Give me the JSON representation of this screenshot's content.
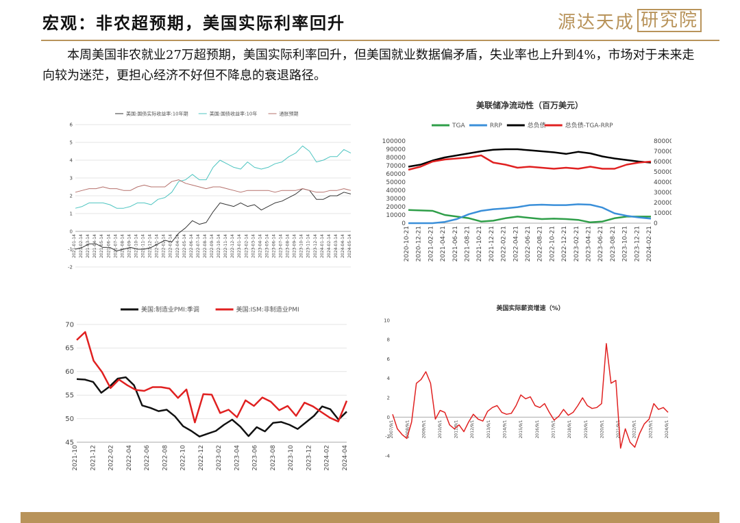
{
  "header": {
    "title": "宏观：非农超预期，美国实际利率回升",
    "logo_text": "源达天成",
    "logo_box": "研究院"
  },
  "body": {
    "paragraph": "本周美国非农就业27万超预期，美国实际利率回升，但美国就业数据偏矛盾，失业率也上升到4%，市场对于未来走向较为迷茫，更担心经济不好但不降息的衰退路径。"
  },
  "colors": {
    "gold": "#b8935a"
  },
  "chart_data": [
    {
      "type": "line",
      "title": "",
      "legend": [
        "美国:国债实际收益率:10年期",
        "美国:国债收益率:10年",
        "通胀预期"
      ],
      "x_ticks": [
        "2021-01-14",
        "2021-02-14",
        "2021-03-14",
        "2021-04-14",
        "2021-05-14",
        "2021-06-14",
        "2021-07-14",
        "2021-08-14",
        "2021-09-14",
        "2021-10-14",
        "2021-11-14",
        "2021-12-14",
        "2022-01-14",
        "2022-02-14",
        "2022-03-14",
        "2022-04-14",
        "2022-05-14",
        "2022-06-14",
        "2022-07-14",
        "2022-08-14",
        "2022-09-14",
        "2022-10-14",
        "2022-11-14",
        "2022-12-14",
        "2023-01-14",
        "2023-02-14",
        "2023-03-14",
        "2023-04-14",
        "2023-05-14",
        "2023-06-14",
        "2023-07-14",
        "2023-08-14",
        "2023-09-14",
        "2023-10-14",
        "2023-11-14",
        "2023-12-14",
        "2024-01-14",
        "2024-02-14",
        "2024-03-14",
        "2024-04-14",
        "2024-05-14"
      ],
      "y_ticks": [
        "-2",
        "-1",
        "0",
        "1",
        "2",
        "3",
        "4",
        "5",
        "6"
      ],
      "ylim": [
        -2,
        6
      ],
      "series": [
        {
          "name": "美国:国债实际收益率:10年期",
          "color": "#333333",
          "values": [
            -1.0,
            -0.9,
            -0.7,
            -0.7,
            -0.9,
            -0.9,
            -1.1,
            -1.0,
            -0.9,
            -1.0,
            -1.0,
            -0.9,
            -0.7,
            -0.5,
            -0.6,
            -0.1,
            0.2,
            0.6,
            0.4,
            0.5,
            1.1,
            1.6,
            1.5,
            1.4,
            1.6,
            1.4,
            1.5,
            1.2,
            1.4,
            1.6,
            1.7,
            1.9,
            2.1,
            2.4,
            2.3,
            1.8,
            1.8,
            2.0,
            2.0,
            2.2,
            2.1
          ]
        },
        {
          "name": "美国:国债收益率:10年",
          "color": "#4cc4c0",
          "values": [
            1.3,
            1.4,
            1.6,
            1.6,
            1.6,
            1.5,
            1.3,
            1.3,
            1.4,
            1.6,
            1.6,
            1.5,
            1.8,
            1.9,
            2.2,
            2.8,
            2.9,
            3.2,
            2.9,
            2.9,
            3.6,
            4.0,
            3.8,
            3.6,
            3.5,
            3.9,
            3.6,
            3.5,
            3.6,
            3.8,
            3.9,
            4.2,
            4.4,
            4.8,
            4.5,
            3.9,
            4.0,
            4.2,
            4.2,
            4.6,
            4.4
          ]
        },
        {
          "name": "通胀预期",
          "color": "#b5706b",
          "values": [
            2.2,
            2.3,
            2.4,
            2.4,
            2.5,
            2.4,
            2.4,
            2.3,
            2.3,
            2.5,
            2.6,
            2.5,
            2.5,
            2.5,
            2.8,
            2.9,
            2.7,
            2.6,
            2.5,
            2.4,
            2.5,
            2.5,
            2.4,
            2.3,
            2.2,
            2.3,
            2.3,
            2.3,
            2.3,
            2.2,
            2.3,
            2.3,
            2.3,
            2.4,
            2.3,
            2.2,
            2.2,
            2.3,
            2.3,
            2.4,
            2.3
          ]
        }
      ]
    },
    {
      "type": "line",
      "title": "美联储净流动性（百万美元）",
      "legend": [
        "TGA",
        "RRP",
        "总负债",
        "总负债-TGA-RRP"
      ],
      "x_ticks": [
        "2020-10-21",
        "2020-12-21",
        "2021-02-21",
        "2021-04-21",
        "2021-06-21",
        "2021-08-21",
        "2021-10-21",
        "2021-12-21",
        "2022-02-21",
        "2022-04-21",
        "2022-06-21",
        "2022-08-21",
        "2022-10-21",
        "2022-12-21",
        "2023-02-21",
        "2023-04-21",
        "2023-06-21",
        "2023-08-21",
        "2023-10-21",
        "2023-12-21",
        "2024-02-21"
      ],
      "y_ticks_left": [
        "0",
        "10000",
        "20000",
        "30000",
        "40000",
        "50000",
        "60000",
        "70000",
        "80000",
        "90000",
        "100000"
      ],
      "y_ticks_right": [
        "0",
        "10000",
        "20000",
        "30000",
        "40000",
        "50000",
        "60000",
        "70000",
        "80000"
      ],
      "ylim_left": [
        0,
        100000
      ],
      "ylim_right": [
        0,
        80000
      ],
      "series": [
        {
          "name": "TGA",
          "color": "#2e9e48",
          "axis": "left",
          "values": [
            16000,
            15500,
            15000,
            10000,
            8000,
            6000,
            2000,
            3000,
            6000,
            8000,
            6500,
            5000,
            5500,
            5000,
            4000,
            1000,
            2000,
            6000,
            8000,
            8000,
            8000
          ]
        },
        {
          "name": "RRP",
          "color": "#3a8fd9",
          "axis": "left",
          "values": [
            0,
            0,
            0,
            1500,
            5000,
            11000,
            15000,
            17000,
            18000,
            19500,
            22000,
            22500,
            22000,
            22000,
            23000,
            22500,
            19000,
            12000,
            9000,
            7000,
            5500
          ]
        },
        {
          "name": "总负债",
          "color": "#000000",
          "axis": "right",
          "values": [
            55000,
            57000,
            61000,
            64000,
            66000,
            68000,
            70000,
            71500,
            72000,
            72000,
            71000,
            70000,
            69000,
            67500,
            69500,
            68000,
            65000,
            63000,
            61500,
            60000,
            59000
          ]
        },
        {
          "name": "总负债-TGA-RRP",
          "color": "#e02020",
          "axis": "right",
          "values": [
            52000,
            55000,
            60000,
            62000,
            63000,
            64000,
            66000,
            59000,
            57000,
            54000,
            55000,
            54000,
            53000,
            54000,
            53000,
            55000,
            53000,
            53000,
            57000,
            59000,
            60000
          ]
        }
      ]
    },
    {
      "type": "line",
      "title": "",
      "legend": [
        "美国:制造业PMI:季调",
        "美国:ISM:非制造业PMI"
      ],
      "x_ticks": [
        "2021-10",
        "2021-12",
        "2022-02",
        "2022-04",
        "2022-06",
        "2022-08",
        "2022-10",
        "2022-12",
        "2023-02",
        "2023-04",
        "2023-06",
        "2023-08",
        "2023-10",
        "2023-12",
        "2024-02",
        "2024-04"
      ],
      "y_ticks": [
        "45",
        "50",
        "55",
        "60",
        "65",
        "70"
      ],
      "ylim": [
        45,
        70
      ],
      "series": [
        {
          "name": "美国:制造业PMI:季调",
          "color": "#111111",
          "values": [
            58.4,
            58.3,
            57.8,
            55.5,
            56.8,
            58.5,
            58.8,
            57.1,
            52.8,
            52.3,
            51.6,
            51.9,
            50.5,
            48.4,
            47.4,
            46.2,
            46.8,
            47.4,
            48.7,
            49.8,
            48.3,
            46.3,
            48.2,
            47.3,
            49.1,
            49.3,
            48.7,
            47.8,
            49.2,
            50.6,
            52.6,
            52.0,
            49.8,
            51.5
          ]
        },
        {
          "name": "美国:ISM:非制造业PMI",
          "color": "#e02020",
          "values": [
            66.7,
            68.4,
            62.3,
            59.9,
            56.5,
            58.3,
            57.1,
            56.1,
            55.9,
            56.7,
            56.7,
            56.4,
            54.4,
            56.2,
            49.2,
            55.2,
            55.1,
            51.2,
            51.9,
            50.3,
            53.9,
            52.7,
            54.5,
            53.6,
            51.8,
            52.7,
            50.6,
            53.4,
            52.6,
            51.4,
            50.2,
            49.4,
            53.8
          ]
        }
      ]
    },
    {
      "type": "line",
      "title": "美国实际薪资增速（%）",
      "x_ticks": [
        "2007/9/1",
        "2008/9/1",
        "2009/9/1",
        "2010/9/1",
        "2011/9/1",
        "2012/9/1",
        "2013/9/1",
        "2014/9/1",
        "2015/9/1",
        "2016/9/1",
        "2017/9/1",
        "2018/9/1",
        "2019/9/1",
        "2020/9/1",
        "2021/9/1",
        "2022/9/1",
        "2023/9/1",
        "2024/9/1"
      ],
      "y_ticks": [
        "-4",
        "-2",
        "0",
        "2",
        "4",
        "6",
        "8",
        "10"
      ],
      "ylim": [
        -4,
        10
      ],
      "series": [
        {
          "name": "",
          "color": "#e02020",
          "values": [
            0.3,
            -1.2,
            -1.8,
            -2.2,
            -0.5,
            3.5,
            3.9,
            4.7,
            3.5,
            -0.2,
            0.7,
            0.5,
            -0.8,
            -1.2,
            -0.8,
            -1.5,
            -0.5,
            0.3,
            -0.2,
            -0.4,
            0.6,
            1.0,
            1.2,
            0.5,
            0.3,
            0.4,
            1.2,
            2.3,
            1.9,
            2.1,
            1.2,
            1.0,
            1.4,
            0.5,
            -0.3,
            0.1,
            0.8,
            0.2,
            0.5,
            1.2,
            2.0,
            1.2,
            0.9,
            1.0,
            1.4,
            7.6,
            3.5,
            3.8,
            -3.2,
            -1.2,
            -2.6,
            -3.1,
            -1.7,
            -0.7,
            -0.2,
            1.4,
            0.8,
            1.0,
            0.5
          ]
        }
      ]
    }
  ]
}
